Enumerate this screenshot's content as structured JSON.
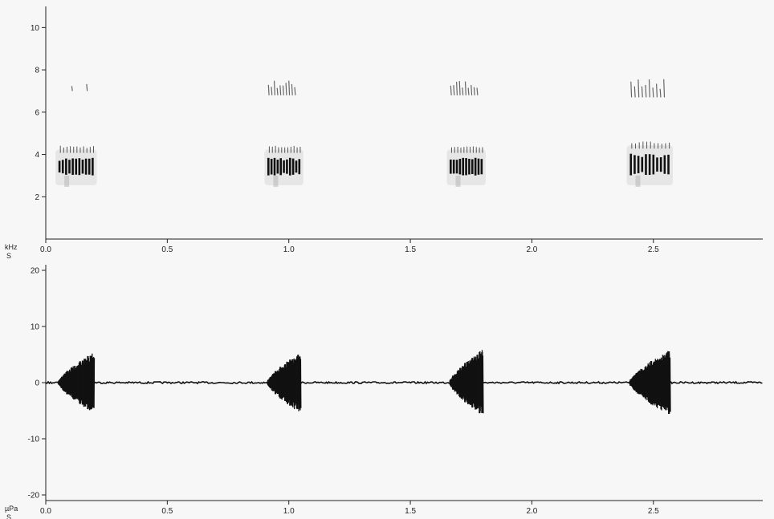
{
  "chart_data": [
    {
      "type": "heatmap",
      "name": "spectrogram",
      "x_unit": "S",
      "y_unit": "kHz",
      "xlim": [
        0,
        2.95
      ],
      "ylim": [
        0,
        11
      ],
      "x_ticks": [
        {
          "value": 0.0,
          "label": "0.0"
        },
        {
          "value": 0.5,
          "label": "0.5"
        },
        {
          "value": 1.0,
          "label": "1.0"
        },
        {
          "value": 1.5,
          "label": "1.5"
        },
        {
          "value": 2.0,
          "label": "2.0"
        },
        {
          "value": 2.5,
          "label": "2.5"
        }
      ],
      "y_ticks": [
        {
          "value": 2,
          "label": "2"
        },
        {
          "value": 4,
          "label": "4"
        },
        {
          "value": 6,
          "label": "6"
        },
        {
          "value": 8,
          "label": "8"
        },
        {
          "value": 10,
          "label": "10"
        }
      ],
      "calls": [
        {
          "t_start": 0.05,
          "t_end": 0.2,
          "f_low": 3.0,
          "f_high": 4.0,
          "harmonic_low": 7.0,
          "harmonic_high": 7.5
        },
        {
          "t_start": 0.91,
          "t_end": 1.05,
          "f_low": 3.0,
          "f_high": 4.0,
          "harmonic_low": 6.8,
          "harmonic_high": 7.6
        },
        {
          "t_start": 1.66,
          "t_end": 1.8,
          "f_low": 3.0,
          "f_high": 4.0,
          "harmonic_low": 6.8,
          "harmonic_high": 7.6
        },
        {
          "t_start": 2.4,
          "t_end": 2.57,
          "f_low": 3.0,
          "f_high": 4.2,
          "harmonic_low": 6.7,
          "harmonic_high": 7.7
        }
      ]
    },
    {
      "type": "line",
      "name": "waveform",
      "x_unit": "S",
      "y_unit": "µPa",
      "xlim": [
        0,
        2.95
      ],
      "ylim": [
        -21,
        21
      ],
      "x_ticks": [
        {
          "value": 0.0,
          "label": "0.0"
        },
        {
          "value": 0.5,
          "label": "0.5"
        },
        {
          "value": 1.0,
          "label": "1.0"
        },
        {
          "value": 1.5,
          "label": "1.5"
        },
        {
          "value": 2.0,
          "label": "2.0"
        },
        {
          "value": 2.5,
          "label": "2.5"
        }
      ],
      "y_ticks": [
        {
          "value": -20,
          "label": "-20"
        },
        {
          "value": -10,
          "label": "-10"
        },
        {
          "value": 0,
          "label": "0"
        },
        {
          "value": 10,
          "label": "10"
        },
        {
          "value": 20,
          "label": "20"
        }
      ],
      "bursts": [
        {
          "t_start": 0.05,
          "t_end": 0.2,
          "peak_amplitude": 5.5
        },
        {
          "t_start": 0.91,
          "t_end": 1.05,
          "peak_amplitude": 5.5
        },
        {
          "t_start": 1.66,
          "t_end": 1.8,
          "peak_amplitude": 6.0
        },
        {
          "t_start": 2.4,
          "t_end": 2.57,
          "peak_amplitude": 6.0
        }
      ]
    }
  ]
}
